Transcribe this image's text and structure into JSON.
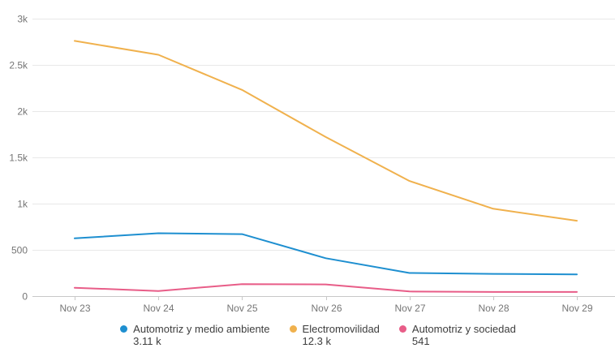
{
  "chart_data": {
    "type": "line",
    "x": [
      "Nov 23",
      "Nov 24",
      "Nov 25",
      "Nov 26",
      "Nov 27",
      "Nov 28",
      "Nov 29"
    ],
    "series": [
      {
        "name": "Automotriz y medio ambiente",
        "total_label": "3.11 k",
        "color": "#1e8fd0",
        "values": [
          625,
          680,
          670,
          410,
          250,
          240,
          235
        ]
      },
      {
        "name": "Electromovilidad",
        "total_label": "12.3 k",
        "color": "#f0b14d",
        "values": [
          2760,
          2610,
          2230,
          1720,
          1245,
          945,
          815
        ]
      },
      {
        "name": "Automotriz y sociedad",
        "total_label": "541",
        "color": "#e85d88",
        "values": [
          90,
          55,
          130,
          126,
          50,
          45,
          45
        ]
      }
    ],
    "ylim": [
      0,
      3000
    ],
    "y_ticks": [
      {
        "value": 0,
        "label": "0"
      },
      {
        "value": 500,
        "label": "500"
      },
      {
        "value": 1000,
        "label": "1k"
      },
      {
        "value": 1500,
        "label": "1.5k"
      },
      {
        "value": 2000,
        "label": "2k"
      },
      {
        "value": 2500,
        "label": "2.5k"
      },
      {
        "value": 3000,
        "label": "3k"
      }
    ],
    "grid": "horizontal",
    "legend_position": "bottom"
  },
  "colors": {
    "grid_line": "#e8e8e8",
    "axis_line": "#c8c8c8",
    "axis_text": "#757575",
    "legend_text": "#3d3d3d",
    "background": "#ffffff"
  }
}
